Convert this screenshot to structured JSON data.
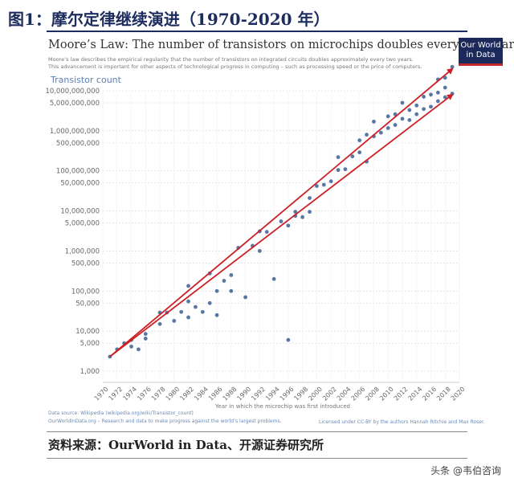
{
  "figure_title": "图1：摩尔定律继续演进（1970-2020 年）",
  "chart_title": "Moore’s Law: The number of transistors on microchips doubles every two years",
  "subtitle_lines": [
    "Moore’s law describes the empirical regularity that the number of transistors on integrated circuits doubles approximately every two years.",
    "This advancement is important for other aspects of technological progress in computing – such as processing speed or the price of computers."
  ],
  "badge": [
    "Our World",
    "in Data"
  ],
  "chart_data": {
    "type": "scatter",
    "ylabel": "Transistor count",
    "xlabel": "Year in which the microchip was first introduced",
    "y_scale": "log",
    "x_ticks": [
      1970,
      1972,
      1974,
      1976,
      1978,
      1980,
      1982,
      1984,
      1986,
      1988,
      1990,
      1992,
      1994,
      1996,
      1998,
      2000,
      2002,
      2004,
      2006,
      2008,
      2010,
      2012,
      2014,
      2016,
      2018,
      2020
    ],
    "y_ticks": [
      {
        "value": 10000000000,
        "label": "10,000,000,000"
      },
      {
        "value": 5000000000,
        "label": "5,000,000,000"
      },
      {
        "value": 1000000000,
        "label": "1,000,000,000"
      },
      {
        "value": 500000000,
        "label": "500,000,000"
      },
      {
        "value": 100000000,
        "label": "100,000,000"
      },
      {
        "value": 50000000,
        "label": "50,000,000"
      },
      {
        "value": 10000000,
        "label": "10,000,000"
      },
      {
        "value": 5000000,
        "label": "5,000,000"
      },
      {
        "value": 1000000,
        "label": "1,000,000"
      },
      {
        "value": 500000,
        "label": "500,000"
      },
      {
        "value": 100000,
        "label": "100,000"
      },
      {
        "value": 50000,
        "label": "50,000"
      },
      {
        "value": 10000,
        "label": "10,000"
      },
      {
        "value": 5000,
        "label": "5,000"
      },
      {
        "value": 1000,
        "label": "1,000"
      }
    ],
    "points": [
      [
        1971,
        2300
      ],
      [
        1972,
        3500
      ],
      [
        1973,
        5000
      ],
      [
        1974,
        4100
      ],
      [
        1974,
        6000
      ],
      [
        1975,
        3500
      ],
      [
        1976,
        8500
      ],
      [
        1976,
        6500
      ],
      [
        1978,
        29000
      ],
      [
        1978,
        15000
      ],
      [
        1979,
        29000
      ],
      [
        1980,
        18000
      ],
      [
        1981,
        30000
      ],
      [
        1982,
        55000
      ],
      [
        1982,
        134000
      ],
      [
        1982,
        22000
      ],
      [
        1983,
        40000
      ],
      [
        1984,
        30000
      ],
      [
        1985,
        275000
      ],
      [
        1986,
        25000
      ],
      [
        1986,
        100000
      ],
      [
        1987,
        180000
      ],
      [
        1988,
        250000
      ],
      [
        1988,
        100000
      ],
      [
        1989,
        1200000
      ],
      [
        1990,
        70000
      ],
      [
        1991,
        1350000
      ],
      [
        1992,
        3100000
      ],
      [
        1993,
        3000000
      ],
      [
        1994,
        200000
      ],
      [
        1995,
        5500000
      ],
      [
        1996,
        4300000
      ],
      [
        1997,
        7500000
      ],
      [
        1997,
        9500000
      ],
      [
        1998,
        7000000
      ],
      [
        1999,
        21000000
      ],
      [
        1999,
        9500000
      ],
      [
        2000,
        42000000
      ],
      [
        2001,
        45000000
      ],
      [
        2002,
        55000000
      ],
      [
        2003,
        105000000
      ],
      [
        2003,
        220000000
      ],
      [
        2004,
        110000000
      ],
      [
        2005,
        230000000
      ],
      [
        2006,
        290000000
      ],
      [
        2006,
        580000000
      ],
      [
        2007,
        170000000
      ],
      [
        2007,
        800000000
      ],
      [
        2008,
        1700000000
      ],
      [
        2008,
        730000000
      ],
      [
        2009,
        900000000
      ],
      [
        2010,
        2300000000
      ],
      [
        2010,
        1170000000
      ],
      [
        2011,
        2600000000
      ],
      [
        2011,
        1400000000
      ],
      [
        2012,
        2000000000
      ],
      [
        2012,
        5000000000
      ],
      [
        2013,
        3300000000
      ],
      [
        2013,
        1860000000
      ],
      [
        2014,
        4300000000
      ],
      [
        2014,
        2600000000
      ],
      [
        2015,
        7100000000
      ],
      [
        2015,
        3500000000
      ],
      [
        2016,
        8000000000
      ],
      [
        2016,
        4000000000
      ],
      [
        2017,
        19200000000
      ],
      [
        2017,
        5500000000
      ],
      [
        2017,
        9000000000
      ],
      [
        2018,
        21100000000
      ],
      [
        2018,
        6900000000
      ],
      [
        2018,
        12000000000
      ],
      [
        1996,
        6000
      ],
      [
        1985,
        50000
      ],
      [
        1992,
        1000000
      ],
      [
        2019,
        8500000000
      ],
      [
        2019,
        39500000000
      ]
    ],
    "trend_lines": [
      {
        "from": [
          1971,
          2300
        ],
        "to": [
          2019,
          35000000000
        ]
      },
      {
        "from": [
          1971,
          2300
        ],
        "to": [
          2019,
          8000000000
        ]
      }
    ]
  },
  "footer": {
    "source_line1": "Data source: Wikipedia (wikipedia.org/wiki/Transistor_count)",
    "source_line2": "OurWorldInData.org – Research and data to make progress against the world’s largest problems.",
    "license": "Licensed under CC-BY by the authors Hannah Ritchie and Max Roser."
  },
  "source_note": "资料来源：OurWorld in Data、开源证券研究所",
  "watermark": "头条 @韦伯咨询",
  "colors": {
    "point": "#3c5f95",
    "trend": "#cc1f26",
    "title": "#1c2c5e",
    "axis_label": "#5b7fb5"
  }
}
